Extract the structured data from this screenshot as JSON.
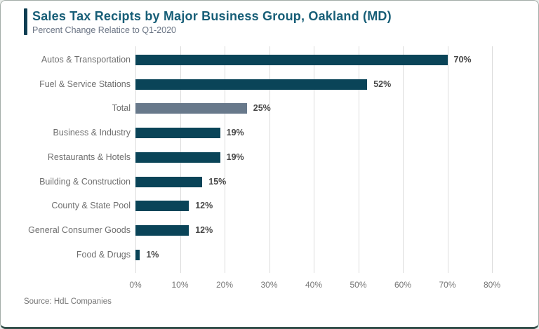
{
  "header": {
    "title": "Sales Tax Recipts by Major Business Group, Oakland (MD)",
    "subtitle": "Percent Change Relatice to Q1-2020"
  },
  "source_note": "Source: HdL Companies",
  "colors": {
    "bar": "#0a4458",
    "highlight_bar": "#68798b",
    "title_text": "#175e77",
    "accent_bar": "#0e3e52",
    "gridline": "#dcdcdc"
  },
  "chart_data": {
    "type": "bar",
    "orientation": "horizontal",
    "title": "Sales Tax Recipts by Major Business Group, Oakland (MD)",
    "subtitle": "Percent Change Relatice to Q1-2020",
    "categories": [
      "Autos & Transportation",
      "Fuel & Service Stations",
      "Total",
      "Business & Industry",
      "Restaurants & Hotels",
      "Building & Construction",
      "County & State Pool",
      "General Consumer Goods",
      "Food & Drugs"
    ],
    "values": [
      70,
      52,
      25,
      19,
      19,
      15,
      12,
      12,
      1
    ],
    "value_labels": [
      "70%",
      "52%",
      "25%",
      "19%",
      "19%",
      "15%",
      "12%",
      "12%",
      "1%"
    ],
    "highlight_index": 2,
    "xlim": [
      0,
      80
    ],
    "x_tick_values": [
      0,
      10,
      20,
      30,
      40,
      50,
      60,
      70,
      80
    ],
    "x_tick_labels": [
      "0%",
      "10%",
      "20%",
      "30%",
      "40%",
      "50%",
      "60%",
      "70%",
      "80%"
    ],
    "grid": "vertical",
    "legend": "none",
    "data_labels_position": "outside-end"
  }
}
